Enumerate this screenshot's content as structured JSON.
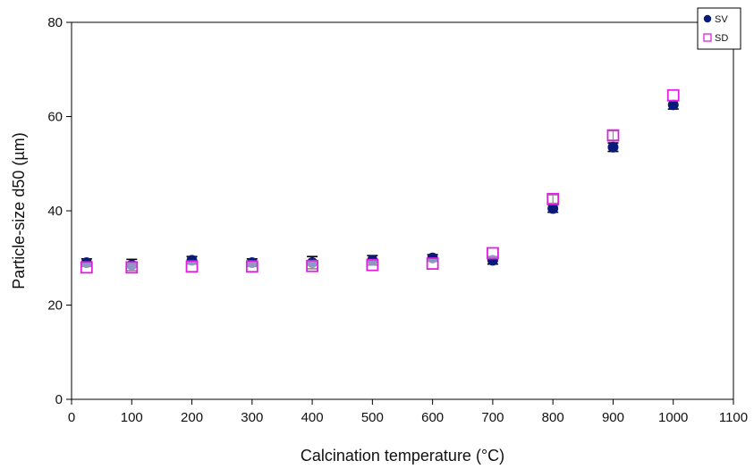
{
  "chart_data": {
    "type": "scatter",
    "title": "",
    "xlabel": "Calcination temperature (°C)",
    "ylabel": "Particle-size d50 (µm)",
    "xlim": [
      0,
      1100
    ],
    "ylim": [
      0,
      80
    ],
    "x_ticks": [
      "0",
      "100",
      "200",
      "300",
      "400",
      "500",
      "600",
      "700",
      "800",
      "900",
      "1000",
      "1100"
    ],
    "y_ticks": [
      "0",
      "20",
      "40",
      "60",
      "80"
    ],
    "grid": false,
    "legend_position": "top-right",
    "series": [
      {
        "name": "SV",
        "marker": "filled-circle",
        "color": "#0a1a7a",
        "x": [
          25,
          100,
          200,
          300,
          400,
          500,
          600,
          700,
          800,
          900,
          1000
        ],
        "y": [
          29,
          28.5,
          29.5,
          29,
          29,
          29.5,
          30,
          29.5,
          40.5,
          53.5,
          62.5
        ],
        "err": [
          0.8,
          1.2,
          0.8,
          0.8,
          1.3,
          1.0,
          0.7,
          0.8,
          0.8,
          0.9,
          0.9
        ]
      },
      {
        "name": "SD",
        "marker": "open-square",
        "color": "#e020e0",
        "x": [
          25,
          100,
          200,
          300,
          400,
          500,
          600,
          700,
          800,
          900,
          1000
        ],
        "y": [
          28,
          28,
          28.2,
          28.2,
          28.3,
          28.5,
          28.8,
          31,
          42.5,
          56,
          64.5
        ],
        "err": [
          0,
          0,
          0,
          0,
          0,
          0,
          0,
          0,
          0.9,
          1.0,
          0
        ]
      }
    ]
  }
}
